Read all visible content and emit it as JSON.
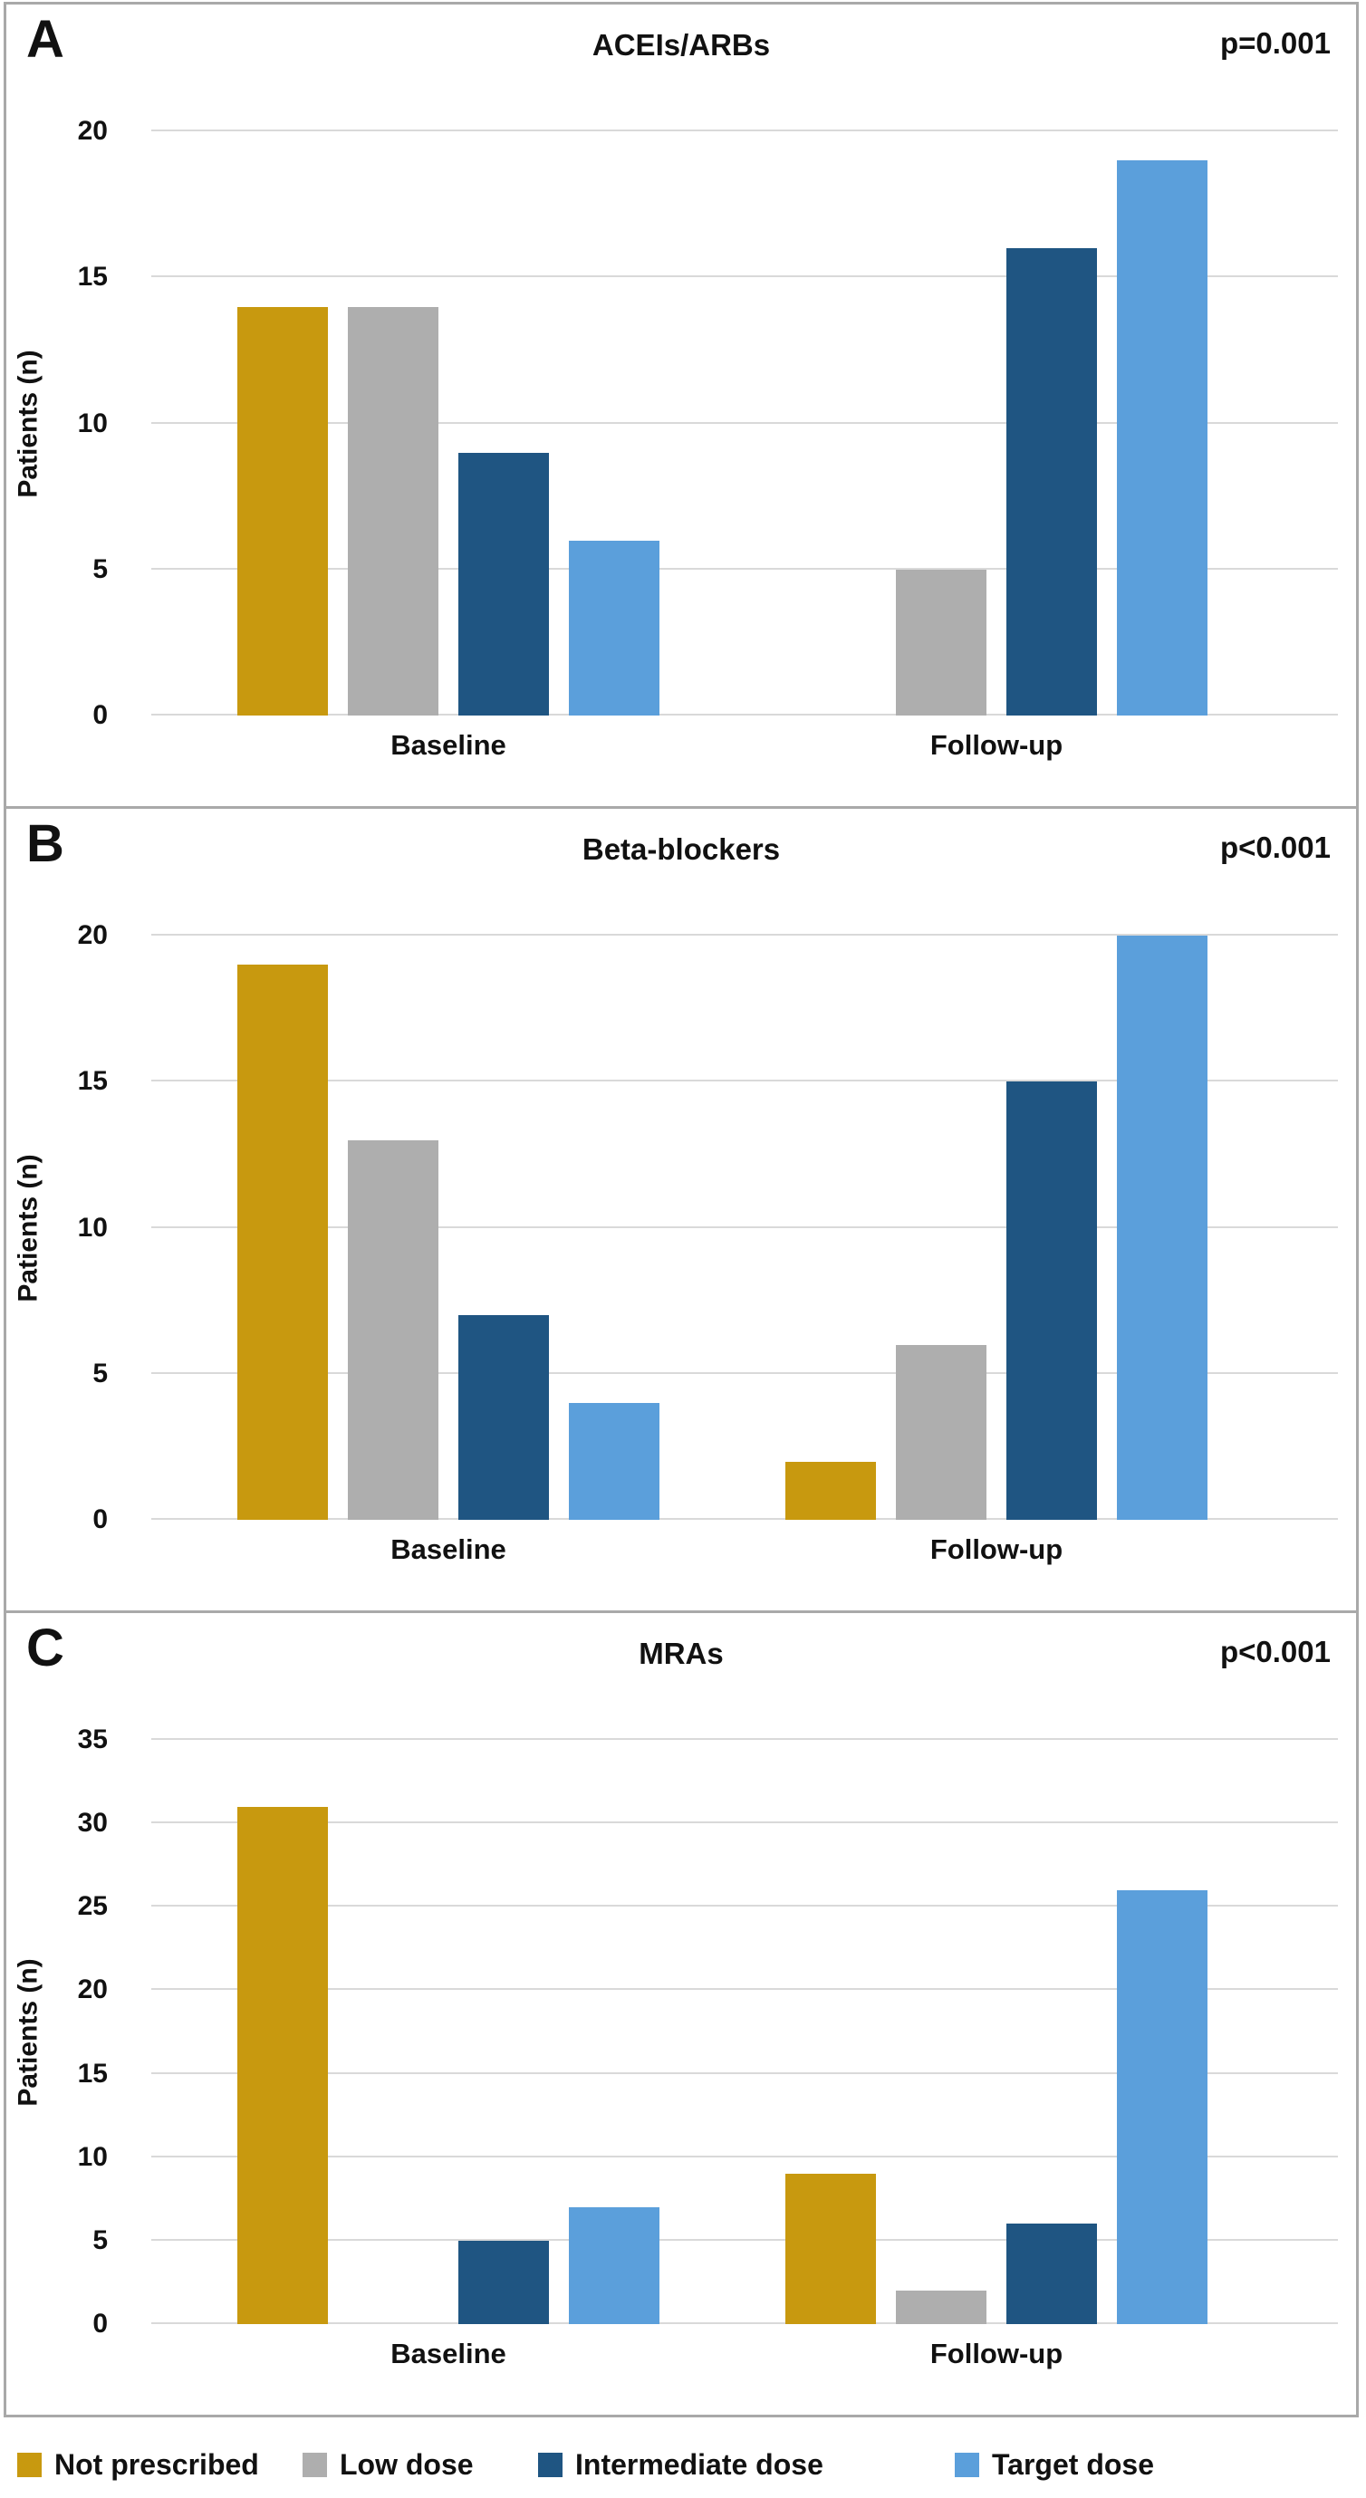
{
  "figure": {
    "ylabel": "Patients (n)",
    "series": [
      {
        "name": "Not prescribed",
        "color": "#C8990F"
      },
      {
        "name": "Low dose",
        "color": "#AEAEAE"
      },
      {
        "name": "Intermediate dose",
        "color": "#1F5582"
      },
      {
        "name": "Target dose",
        "color": "#5B9FDB"
      }
    ],
    "grid_color": "#d9d9d9"
  },
  "chart_data": [
    {
      "type": "bar",
      "panel_label": "A",
      "title": "ACEIs/ARBs",
      "p_value": "p=0.001",
      "categories": [
        "Baseline",
        "Follow-up"
      ],
      "series": [
        {
          "name": "Not prescribed",
          "values": [
            14,
            0
          ]
        },
        {
          "name": "Low dose",
          "values": [
            14,
            5
          ]
        },
        {
          "name": "Intermediate dose",
          "values": [
            9,
            16
          ]
        },
        {
          "name": "Target dose",
          "values": [
            6,
            19
          ]
        }
      ],
      "xlabel": "",
      "ylabel": "Patients (n)",
      "ylim": [
        0,
        20
      ],
      "yticks": [
        0,
        5,
        10,
        15,
        20
      ],
      "grid": true,
      "legend_position": "shared-bottom"
    },
    {
      "type": "bar",
      "panel_label": "B",
      "title": "Beta-blockers",
      "p_value": "p<0.001",
      "categories": [
        "Baseline",
        "Follow-up"
      ],
      "series": [
        {
          "name": "Not prescribed",
          "values": [
            19,
            2
          ]
        },
        {
          "name": "Low dose",
          "values": [
            13,
            6
          ]
        },
        {
          "name": "Intermediate dose",
          "values": [
            7,
            15
          ]
        },
        {
          "name": "Target dose",
          "values": [
            4,
            20
          ]
        }
      ],
      "xlabel": "",
      "ylabel": "Patients (n)",
      "ylim": [
        0,
        20
      ],
      "yticks": [
        0,
        5,
        10,
        15,
        20
      ],
      "grid": true,
      "legend_position": "shared-bottom"
    },
    {
      "type": "bar",
      "panel_label": "C",
      "title": "MRAs",
      "p_value": "p<0.001",
      "categories": [
        "Baseline",
        "Follow-up"
      ],
      "series": [
        {
          "name": "Not prescribed",
          "values": [
            31,
            9
          ]
        },
        {
          "name": "Low dose",
          "values": [
            0,
            2
          ]
        },
        {
          "name": "Intermediate dose",
          "values": [
            5,
            6
          ]
        },
        {
          "name": "Target dose",
          "values": [
            7,
            26
          ]
        }
      ],
      "xlabel": "",
      "ylabel": "Patients (n)",
      "ylim": [
        0,
        35
      ],
      "yticks": [
        0,
        5,
        10,
        15,
        20,
        25,
        30,
        35
      ],
      "grid": true,
      "legend_position": "shared-bottom"
    }
  ],
  "legend": {
    "items": [
      {
        "label": "Not prescribed",
        "color": "#C8990F"
      },
      {
        "label": "Low dose",
        "color": "#AEAEAE"
      },
      {
        "label": "Intermediate dose",
        "color": "#1F5582"
      },
      {
        "label": "Target dose",
        "color": "#5B9FDB"
      }
    ]
  }
}
